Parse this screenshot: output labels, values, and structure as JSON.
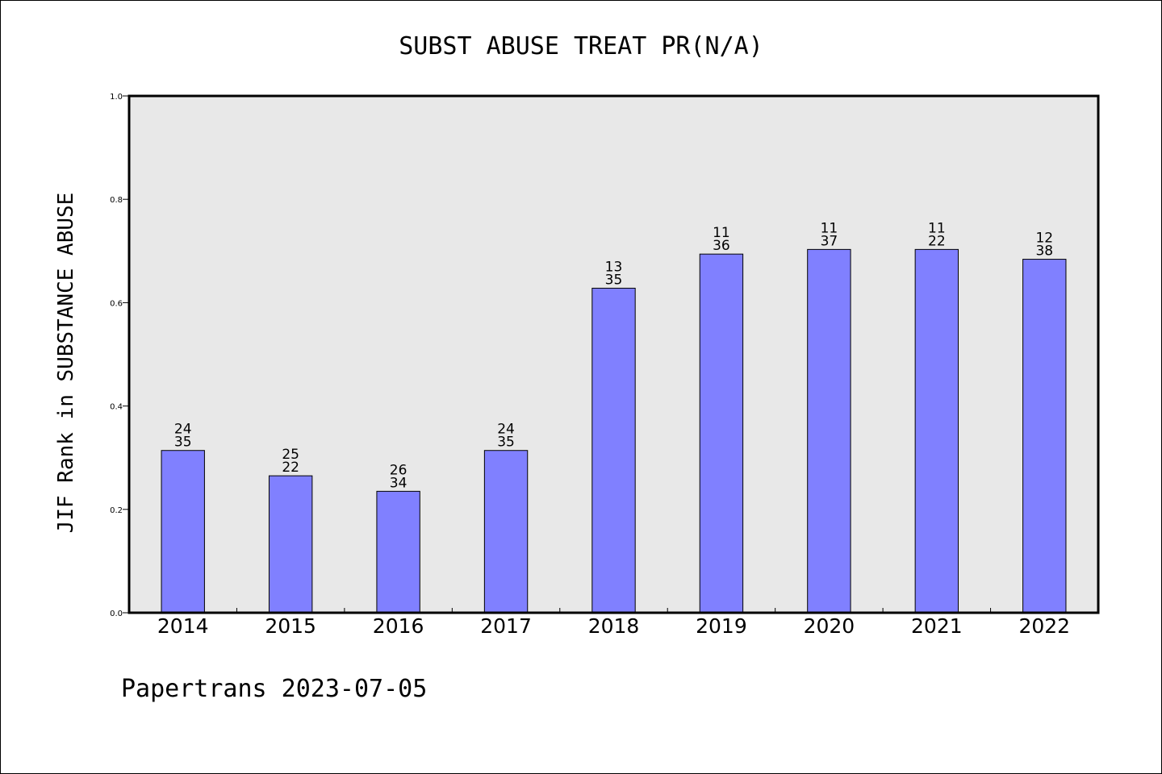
{
  "chart_data": {
    "type": "bar",
    "title": "SUBST ABUSE TREAT PR(N/A)",
    "ylabel": "JIF Rank in SUBSTANCE ABUSE",
    "xlabel": "",
    "ylim": [
      0,
      1.0
    ],
    "yticks": [
      0.0,
      0.2,
      0.4,
      0.6,
      0.8,
      1.0
    ],
    "yticklabels": [
      "0.0",
      "0.2",
      "0.4",
      "0.6",
      "0.8",
      "1.0"
    ],
    "categories": [
      "2014",
      "2015",
      "2016",
      "2017",
      "2018",
      "2019",
      "2020",
      "2021",
      "2022"
    ],
    "values": [
      0.314,
      0.265,
      0.235,
      0.314,
      0.628,
      0.694,
      0.703,
      0.703,
      0.684
    ],
    "bar_labels_top": [
      "24",
      "25",
      "26",
      "24",
      "13",
      "11",
      "11",
      "11",
      "12"
    ],
    "bar_labels_bottom": [
      "35",
      "22",
      "34",
      "35",
      "35",
      "36",
      "37",
      "22",
      "38"
    ],
    "bar_color": "#8080ff",
    "plot_background": "#e8e8e8",
    "grid": false,
    "legend": "none"
  },
  "footer": "Papertrans 2023-07-05"
}
